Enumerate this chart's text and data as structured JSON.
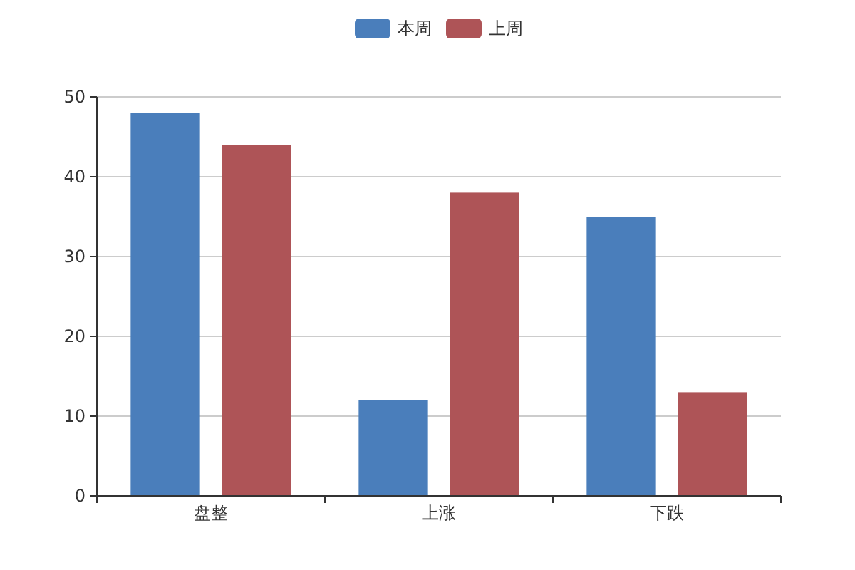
{
  "chart_data": {
    "type": "bar",
    "categories": [
      "盘整",
      "上涨",
      "下跌"
    ],
    "series": [
      {
        "name": "本周",
        "color": "#4a7ebb",
        "values": [
          48,
          12,
          35
        ]
      },
      {
        "name": "上周",
        "color": "#ae5457",
        "values": [
          44,
          38,
          13
        ]
      }
    ],
    "ylim": [
      0,
      50
    ],
    "yticks": [
      0,
      10,
      20,
      30,
      40,
      50
    ],
    "grid": "y",
    "legend": "top"
  }
}
